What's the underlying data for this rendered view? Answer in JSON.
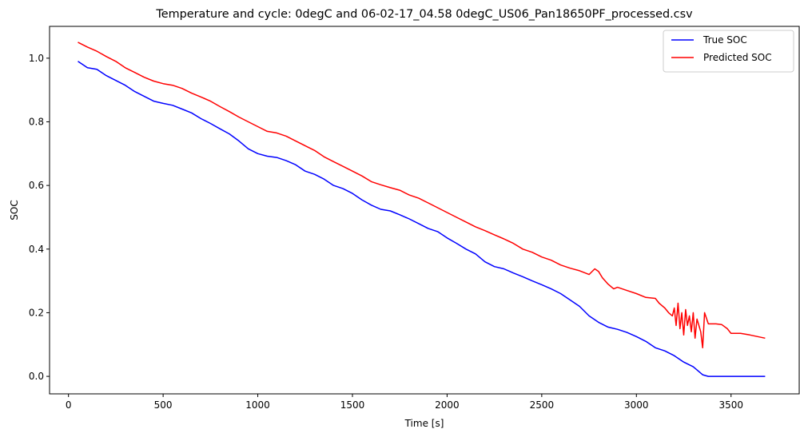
{
  "chart_data": {
    "type": "line",
    "title": "Temperature and cycle: 0degC and 06-02-17_04.58 0degC_US06_Pan18650PF_processed.csv",
    "xlabel": "Time [s]",
    "ylabel": "SOC",
    "xlim": [
      -100,
      3860
    ],
    "ylim": [
      -0.055,
      1.1
    ],
    "xticks": [
      0,
      500,
      1000,
      1500,
      2000,
      2500,
      3000,
      3500
    ],
    "yticks": [
      0.0,
      0.2,
      0.4,
      0.6,
      0.8,
      1.0
    ],
    "xtick_labels": [
      "0",
      "500",
      "1000",
      "1500",
      "2000",
      "2500",
      "3000",
      "3500"
    ],
    "ytick_labels": [
      "0.0",
      "0.2",
      "0.4",
      "0.6",
      "0.8",
      "1.0"
    ],
    "grid": false,
    "legend_position": "top-right",
    "series": [
      {
        "name": "True SOC",
        "color": "#0000ff",
        "x": [
          50,
          100,
          150,
          200,
          250,
          300,
          350,
          400,
          450,
          500,
          550,
          600,
          650,
          700,
          750,
          800,
          850,
          900,
          950,
          1000,
          1050,
          1100,
          1150,
          1200,
          1250,
          1300,
          1350,
          1400,
          1450,
          1500,
          1550,
          1600,
          1650,
          1700,
          1750,
          1800,
          1850,
          1900,
          1950,
          2000,
          2050,
          2100,
          2150,
          2200,
          2250,
          2300,
          2350,
          2400,
          2450,
          2500,
          2550,
          2600,
          2650,
          2700,
          2750,
          2800,
          2850,
          2900,
          2950,
          3000,
          3050,
          3100,
          3150,
          3200,
          3250,
          3300,
          3350,
          3380,
          3450,
          3550,
          3680
        ],
        "y": [
          0.99,
          0.97,
          0.965,
          0.945,
          0.93,
          0.915,
          0.895,
          0.88,
          0.865,
          0.858,
          0.852,
          0.84,
          0.828,
          0.81,
          0.795,
          0.778,
          0.762,
          0.74,
          0.715,
          0.7,
          0.692,
          0.688,
          0.678,
          0.665,
          0.645,
          0.635,
          0.62,
          0.6,
          0.59,
          0.575,
          0.555,
          0.538,
          0.525,
          0.52,
          0.508,
          0.495,
          0.48,
          0.465,
          0.455,
          0.435,
          0.418,
          0.4,
          0.385,
          0.36,
          0.345,
          0.338,
          0.325,
          0.313,
          0.3,
          0.288,
          0.275,
          0.26,
          0.24,
          0.22,
          0.19,
          0.17,
          0.155,
          0.148,
          0.138,
          0.125,
          0.11,
          0.09,
          0.08,
          0.065,
          0.045,
          0.03,
          0.005,
          0.0,
          0.0,
          0.0,
          0.0
        ]
      },
      {
        "name": "Predicted SOC",
        "color": "#ff0000",
        "x": [
          50,
          100,
          150,
          200,
          250,
          300,
          350,
          400,
          450,
          500,
          550,
          600,
          650,
          700,
          750,
          800,
          850,
          900,
          950,
          1000,
          1050,
          1100,
          1150,
          1200,
          1250,
          1300,
          1350,
          1400,
          1450,
          1500,
          1550,
          1600,
          1650,
          1700,
          1750,
          1800,
          1850,
          1900,
          1950,
          2000,
          2050,
          2100,
          2150,
          2200,
          2250,
          2300,
          2350,
          2400,
          2450,
          2500,
          2550,
          2600,
          2650,
          2700,
          2750,
          2780,
          2800,
          2820,
          2850,
          2880,
          2900,
          2950,
          3000,
          3050,
          3100,
          3120,
          3150,
          3170,
          3190,
          3200,
          3210,
          3220,
          3230,
          3240,
          3250,
          3260,
          3270,
          3280,
          3290,
          3300,
          3310,
          3320,
          3330,
          3340,
          3350,
          3360,
          3380,
          3420,
          3450,
          3480,
          3500,
          3550,
          3600,
          3680
        ],
        "y": [
          1.05,
          1.035,
          1.022,
          1.005,
          0.99,
          0.97,
          0.955,
          0.94,
          0.928,
          0.92,
          0.915,
          0.905,
          0.89,
          0.878,
          0.865,
          0.848,
          0.832,
          0.815,
          0.8,
          0.785,
          0.77,
          0.765,
          0.755,
          0.74,
          0.725,
          0.71,
          0.69,
          0.675,
          0.66,
          0.645,
          0.63,
          0.612,
          0.602,
          0.593,
          0.585,
          0.57,
          0.56,
          0.545,
          0.53,
          0.515,
          0.5,
          0.485,
          0.47,
          0.458,
          0.445,
          0.432,
          0.418,
          0.4,
          0.39,
          0.375,
          0.365,
          0.35,
          0.34,
          0.332,
          0.32,
          0.338,
          0.33,
          0.31,
          0.29,
          0.275,
          0.28,
          0.27,
          0.26,
          0.248,
          0.245,
          0.23,
          0.215,
          0.2,
          0.19,
          0.215,
          0.16,
          0.23,
          0.15,
          0.2,
          0.13,
          0.21,
          0.16,
          0.19,
          0.14,
          0.2,
          0.12,
          0.18,
          0.16,
          0.14,
          0.09,
          0.2,
          0.165,
          0.165,
          0.163,
          0.15,
          0.135,
          0.135,
          0.13,
          0.12
        ]
      }
    ]
  }
}
